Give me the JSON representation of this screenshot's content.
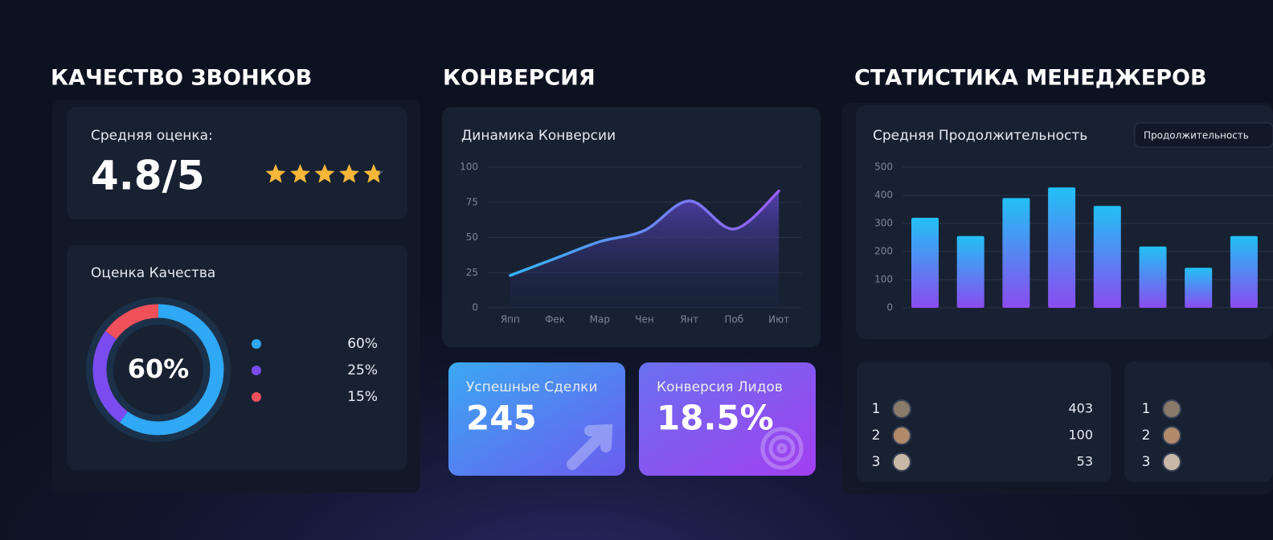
{
  "call_quality": {
    "title": "КАЧЕСТВО ЗВОНКОВ",
    "rating": {
      "label": "Средняя оценка:",
      "text": "4.8/5",
      "score": 4.8,
      "max": 5,
      "color": "#f5b63a"
    },
    "quality": {
      "title": "Оценка Качества",
      "center_label": "60%",
      "values": [
        60,
        25,
        15
      ],
      "value_labels": [
        "60%",
        "25%",
        "15%"
      ],
      "colors": [
        "#2fa8f5",
        "#7a4cf0",
        "#f0505a"
      ]
    }
  },
  "conversion": {
    "title": "КОНВЕРСИЯ",
    "chart_data": {
      "type": "line",
      "title": "Динамика Конверсии",
      "categories": [
        "Япп",
        "Фек",
        "Мар",
        "Чен",
        "Янт",
        "Поб",
        "Иют"
      ],
      "values": [
        23,
        35,
        47,
        55,
        76,
        56,
        83
      ],
      "ylim": [
        0,
        100
      ],
      "yticks": [
        0,
        25,
        50,
        75,
        100
      ],
      "grid": true,
      "color": "#3aa8f5"
    },
    "cards": [
      {
        "label": "Успешные Сделки",
        "value": "245"
      },
      {
        "label": "Конверсия Лидов",
        "value": "18.5%"
      }
    ]
  },
  "managers": {
    "title": "СТАТИСТИКА МЕНЕДЖЕРОВ",
    "chart_data": {
      "type": "bar",
      "title": "Средняя Продолжительность",
      "values": [
        320,
        255,
        390,
        428,
        362,
        218,
        142,
        255
      ],
      "ylim": [
        0,
        500
      ],
      "yticks": [
        0,
        100,
        200,
        300,
        400,
        500
      ],
      "grid": true,
      "colors": [
        "#22c0f5",
        "#8a4cf0"
      ]
    },
    "dropdown": "Продолжительность",
    "leaderboards": [
      {
        "rows": [
          {
            "rank": 1,
            "value": 403
          },
          {
            "rank": 2,
            "value": 100
          },
          {
            "rank": 3,
            "value": 53
          }
        ]
      },
      {
        "rows": [
          {
            "rank": 1
          },
          {
            "rank": 2
          },
          {
            "rank": 3
          }
        ]
      }
    ]
  }
}
